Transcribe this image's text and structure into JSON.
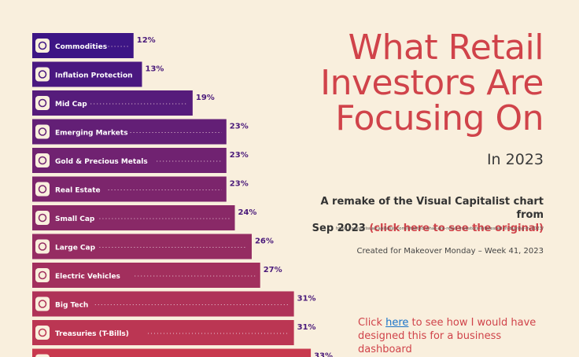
{
  "title_lines": [
    "What Retail",
    "Investors Are",
    "Focusing On"
  ],
  "year_label": "In 2023",
  "remake": {
    "line1": "A remake of the Visual Capitalist chart from",
    "line2_prefix": "Sep 2023 ",
    "line2_link": "(click here to see the original)",
    "url": "https://www.visualcapitalist.com/charted-what-are-retail-investors-interested-in-buying-in-2023/"
  },
  "created": "Created for Makeover Monday – Week 41, 2023",
  "dashboard": {
    "prefix": "Click ",
    "link": "here",
    "suffix": " to see how I would have designed this for a business dashboard"
  },
  "colors": {
    "bar_start": "#3d1585",
    "bar_end": "#c8394e",
    "label": "#4a1a7a",
    "title": "#d0434a"
  },
  "chart_data": {
    "type": "bar",
    "orientation": "horizontal",
    "categories": [
      "Commodities",
      "Inflation Protection",
      "Mid Cap",
      "Emerging Markets",
      "Gold & Precious Metals",
      "Real Estate",
      "Small Cap",
      "Large Cap",
      "Electric Vehicles",
      "Big Tech",
      "Treasuries (T-Bills)",
      ""
    ],
    "values": [
      12,
      13,
      19,
      23,
      23,
      23,
      24,
      26,
      27,
      31,
      31,
      33
    ],
    "value_labels": [
      "12%",
      "13%",
      "19%",
      "23%",
      "23%",
      "23%",
      "24%",
      "26%",
      "27%",
      "31%",
      "31%",
      "33%"
    ],
    "icons": [
      "commodities-icon",
      "inflation-protection-icon",
      "mid-cap-icon",
      "emerging-markets-icon",
      "gold-icon",
      "real-estate-icon",
      "small-cap-icon",
      "large-cap-icon",
      "electric-vehicles-icon",
      "big-tech-icon",
      "treasuries-icon",
      "unknown-icon"
    ],
    "xlim": [
      0,
      35
    ],
    "title": "",
    "xlabel": "",
    "ylabel": ""
  }
}
